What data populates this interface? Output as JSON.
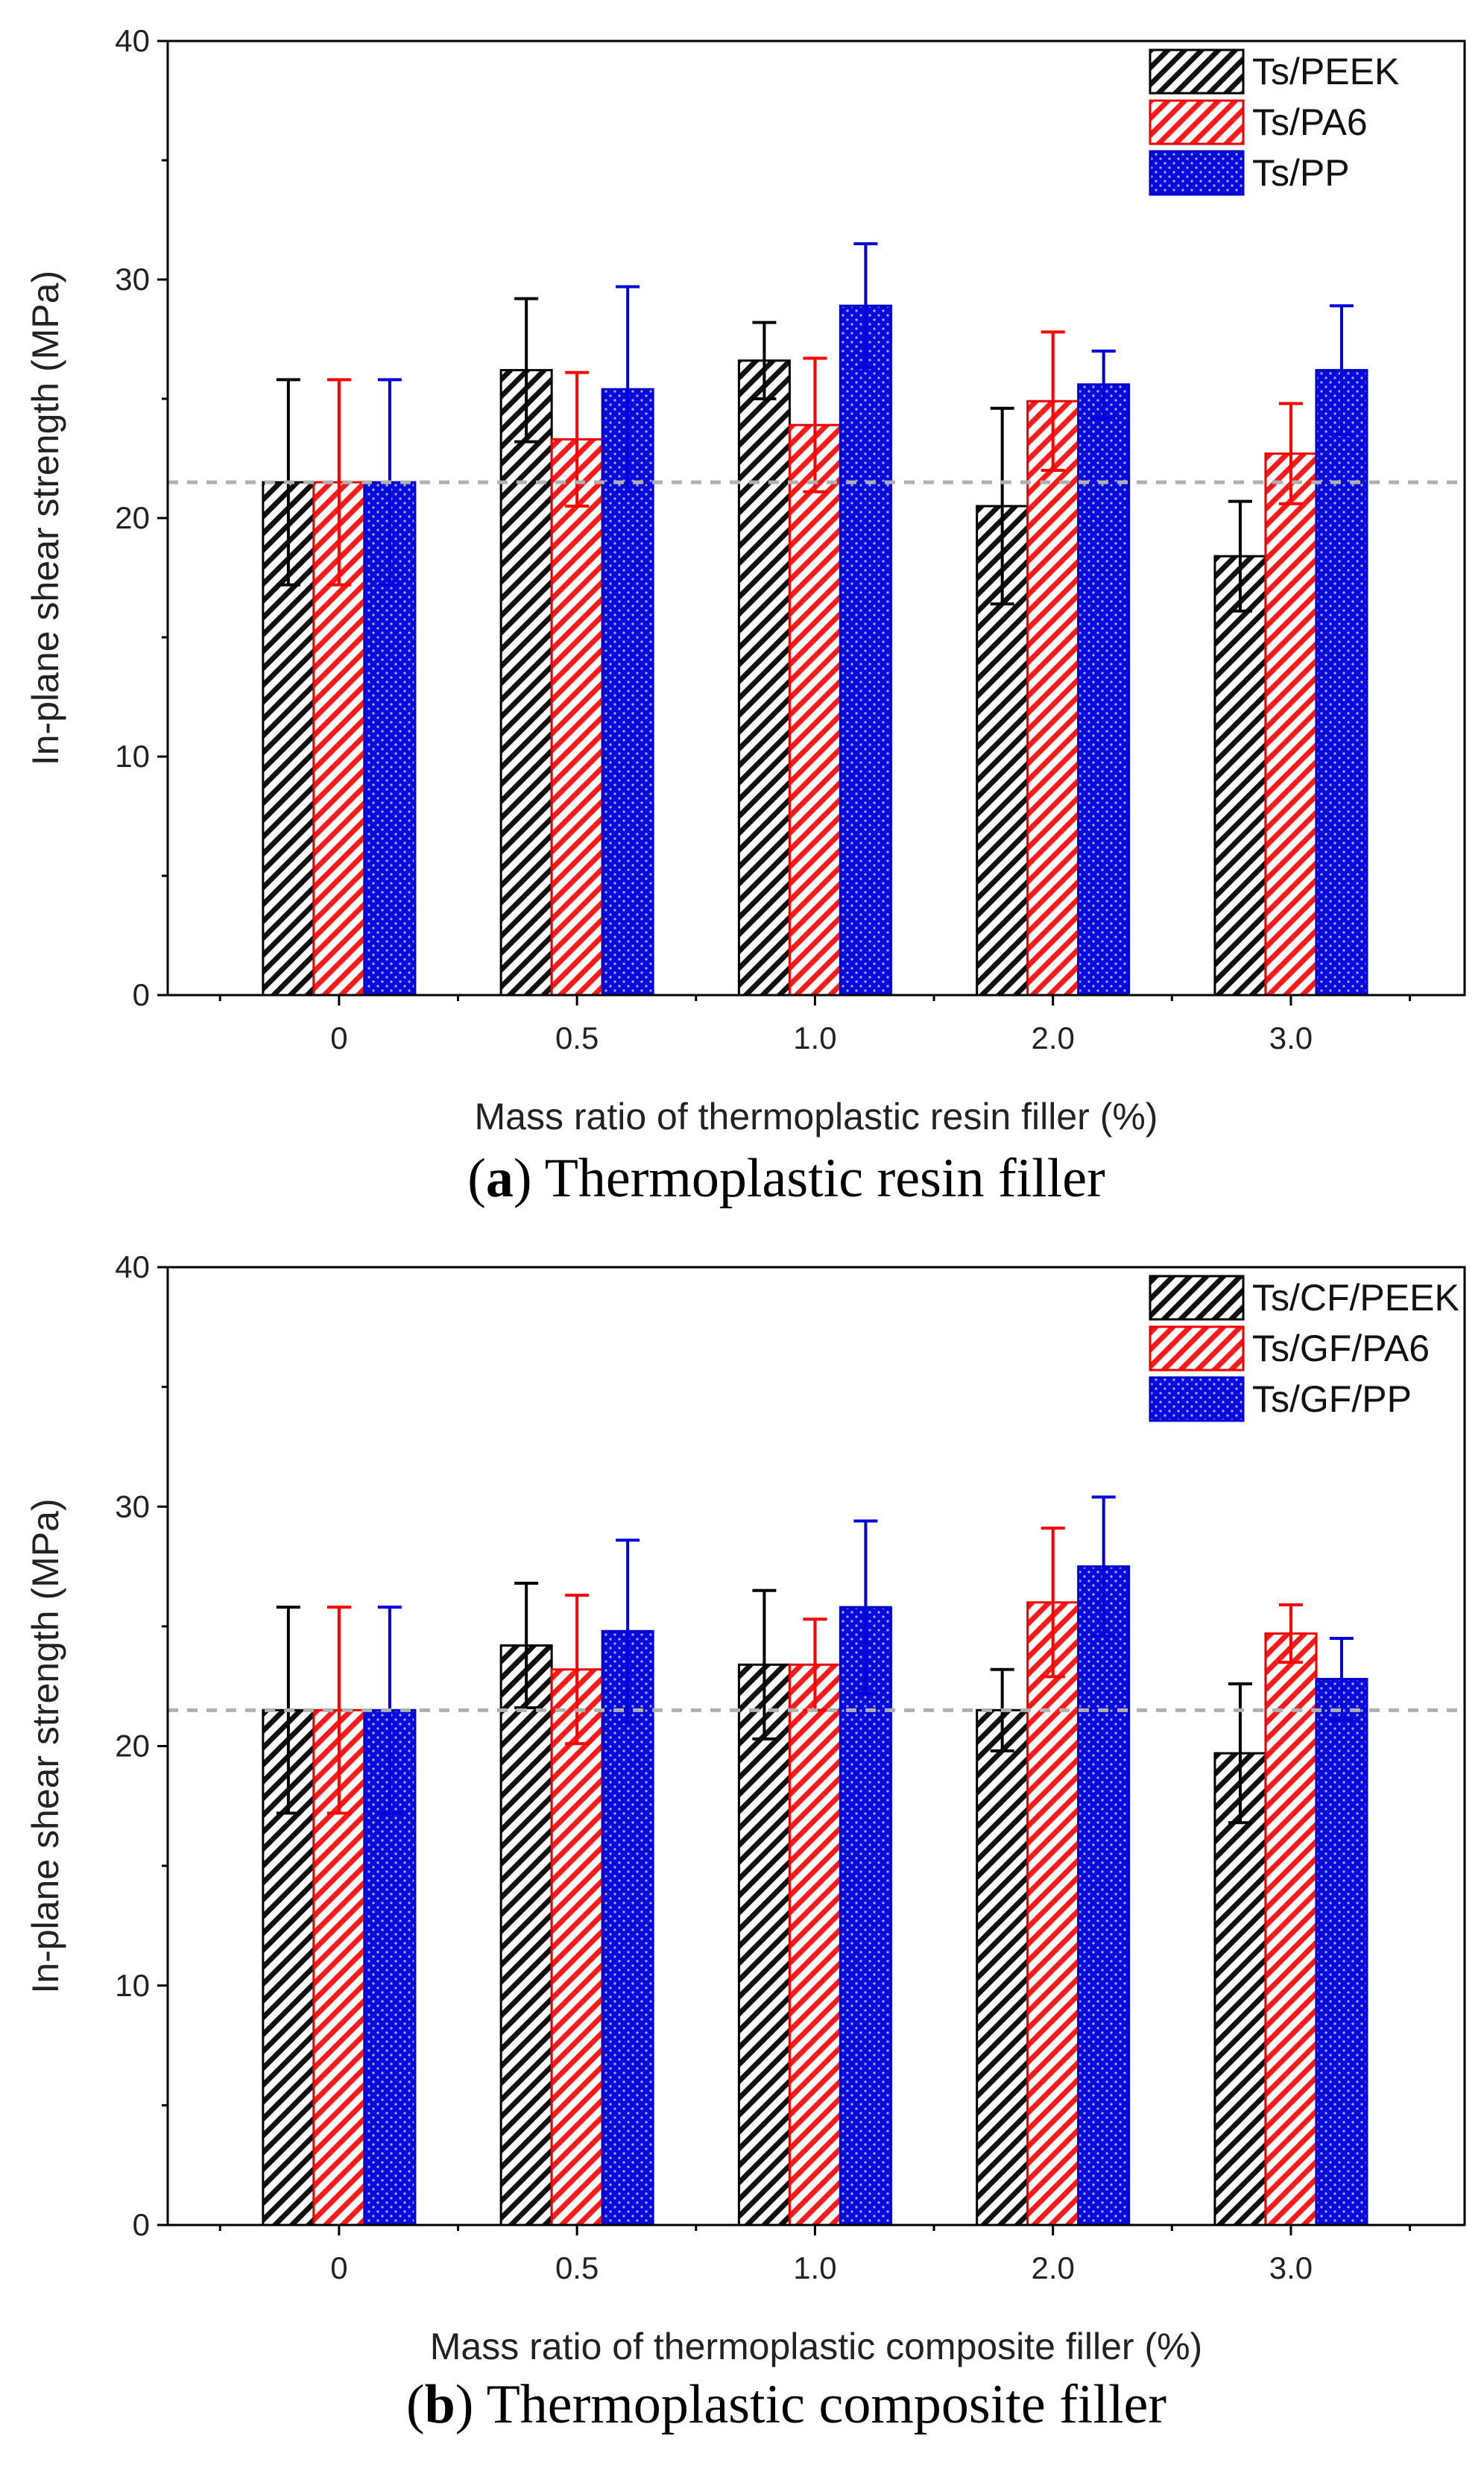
{
  "chart_data": [
    {
      "type": "bar",
      "panel": "a",
      "caption_letter": "a",
      "caption_text": "Thermoplastic resin filler",
      "xlabel": "Mass ratio of thermoplastic resin filler (%)",
      "ylabel": "In-plane shear strength (MPa)",
      "ylim": [
        0,
        40
      ],
      "yticks": [
        "0",
        "10",
        "20",
        "30",
        "40"
      ],
      "categories": [
        "0",
        "0.5",
        "1.0",
        "2.0",
        "3.0"
      ],
      "reference_line": 21.5,
      "legend_position": "top-right",
      "series": [
        {
          "name": "Ts/PEEK",
          "color": "#000000",
          "pattern": "hatch",
          "values": [
            21.5,
            26.2,
            26.6,
            20.5,
            18.4
          ],
          "errors": [
            4.3,
            3.0,
            1.6,
            4.1,
            2.3
          ]
        },
        {
          "name": "Ts/PA6",
          "color": "#ff0000",
          "pattern": "hatch",
          "values": [
            21.5,
            23.3,
            23.9,
            24.9,
            22.7
          ],
          "errors": [
            4.3,
            2.8,
            2.8,
            2.9,
            2.1
          ]
        },
        {
          "name": "Ts/PP",
          "color": "#0000cc",
          "pattern": "dots",
          "values": [
            21.5,
            25.4,
            28.9,
            25.6,
            26.2
          ],
          "errors": [
            4.3,
            4.3,
            2.6,
            1.4,
            2.7
          ]
        }
      ]
    },
    {
      "type": "bar",
      "panel": "b",
      "caption_letter": "b",
      "caption_text": "Thermoplastic composite filler",
      "xlabel": "Mass ratio of thermoplastic composite filler (%)",
      "ylabel": "In-plane shear strength (MPa)",
      "ylim": [
        0,
        40
      ],
      "yticks": [
        "0",
        "10",
        "20",
        "30",
        "40"
      ],
      "categories": [
        "0",
        "0.5",
        "1.0",
        "2.0",
        "3.0"
      ],
      "reference_line": 21.5,
      "legend_position": "top-right",
      "series": [
        {
          "name": "Ts/CF/PEEK",
          "color": "#000000",
          "pattern": "hatch",
          "values": [
            21.5,
            24.2,
            23.4,
            21.5,
            19.7
          ],
          "errors": [
            4.3,
            2.6,
            3.1,
            1.7,
            2.9
          ]
        },
        {
          "name": "Ts/GF/PA6",
          "color": "#ff0000",
          "pattern": "hatch",
          "values": [
            21.5,
            23.2,
            23.4,
            26.0,
            24.7
          ],
          "errors": [
            4.3,
            3.1,
            1.9,
            3.1,
            1.2
          ]
        },
        {
          "name": "Ts/GF/PP",
          "color": "#0000cc",
          "pattern": "dots",
          "values": [
            21.5,
            24.8,
            25.8,
            27.5,
            22.8
          ],
          "errors": [
            4.3,
            3.8,
            3.6,
            2.9,
            1.7
          ]
        }
      ]
    }
  ]
}
